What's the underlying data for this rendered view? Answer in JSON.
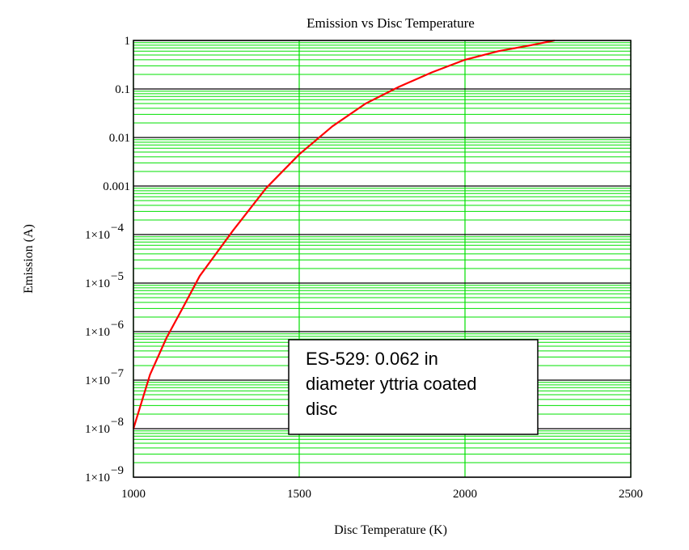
{
  "chart_data": {
    "type": "line",
    "title": "Emission vs Disc Temperature",
    "xlabel": "Disc Temperature (K)",
    "ylabel": "Emission (A)",
    "xlim": [
      1000,
      2500
    ],
    "ylim": [
      1e-09,
      1
    ],
    "y_scale": "log",
    "grid": true,
    "x_ticks": [
      {
        "value": 1000,
        "label": "1000"
      },
      {
        "value": 1500,
        "label": "1500"
      },
      {
        "value": 2000,
        "label": "2000"
      },
      {
        "value": 2500,
        "label": "2500"
      }
    ],
    "y_ticks": [
      {
        "value": 1,
        "mantissa": "1",
        "exp": ""
      },
      {
        "value": 0.1,
        "mantissa": "0.1",
        "exp": ""
      },
      {
        "value": 0.01,
        "mantissa": "0.01",
        "exp": ""
      },
      {
        "value": 0.001,
        "mantissa": "0.001",
        "exp": ""
      },
      {
        "value": 0.0001,
        "mantissa": "1×10",
        "exp": "−4"
      },
      {
        "value": 1e-05,
        "mantissa": "1×10",
        "exp": "−5"
      },
      {
        "value": 1e-06,
        "mantissa": "1×10",
        "exp": "−6"
      },
      {
        "value": 1e-07,
        "mantissa": "1×10",
        "exp": "−7"
      },
      {
        "value": 1e-08,
        "mantissa": "1×10",
        "exp": "−8"
      },
      {
        "value": 1e-09,
        "mantissa": "1×10",
        "exp": "−9"
      }
    ],
    "series": [
      {
        "color": "#ff0000",
        "x": [
          1000,
          1050,
          1100,
          1150,
          1200,
          1300,
          1400,
          1500,
          1600,
          1700,
          1800,
          1900,
          2000,
          2100,
          2200,
          2270
        ],
        "y": [
          1e-08,
          1.3e-07,
          7.5e-07,
          3.2e-06,
          1.4e-05,
          0.00012,
          0.0009,
          0.0045,
          0.017,
          0.05,
          0.11,
          0.22,
          0.4,
          0.6,
          0.8,
          1.0
        ]
      }
    ],
    "annotation": {
      "lines": [
        "ES-529: 0.062 in",
        "diameter yttria coated",
        "disc"
      ]
    },
    "colors": {
      "minor_grid": "#00e000",
      "major_grid_x": "#00e000",
      "decade_grid": "#000000",
      "curve": "#ff0000"
    }
  }
}
